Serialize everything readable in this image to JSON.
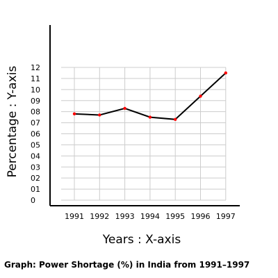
{
  "chart_data": {
    "type": "line",
    "caption": "Graph: Power Shortage (%) in India from 1991–1997",
    "xlabel": "Years : X-axis",
    "ylabel": "Percentage : Y-axis",
    "categories": [
      "1991",
      "1992",
      "1993",
      "1994",
      "1995",
      "1996",
      "1997"
    ],
    "y_tick_labels": [
      "0",
      "01",
      "02",
      "03",
      "04",
      "05",
      "06",
      "07",
      "08",
      "09",
      "10",
      "11",
      "12"
    ],
    "ylim": [
      0,
      12
    ],
    "grid": true,
    "series": [
      {
        "values": [
          7.8,
          7.7,
          8.3,
          7.5,
          7.3,
          9.4,
          11.5
        ]
      }
    ],
    "colors": {
      "line": "#000000",
      "marker": "#ff0000",
      "grid": "#cccccc"
    }
  }
}
